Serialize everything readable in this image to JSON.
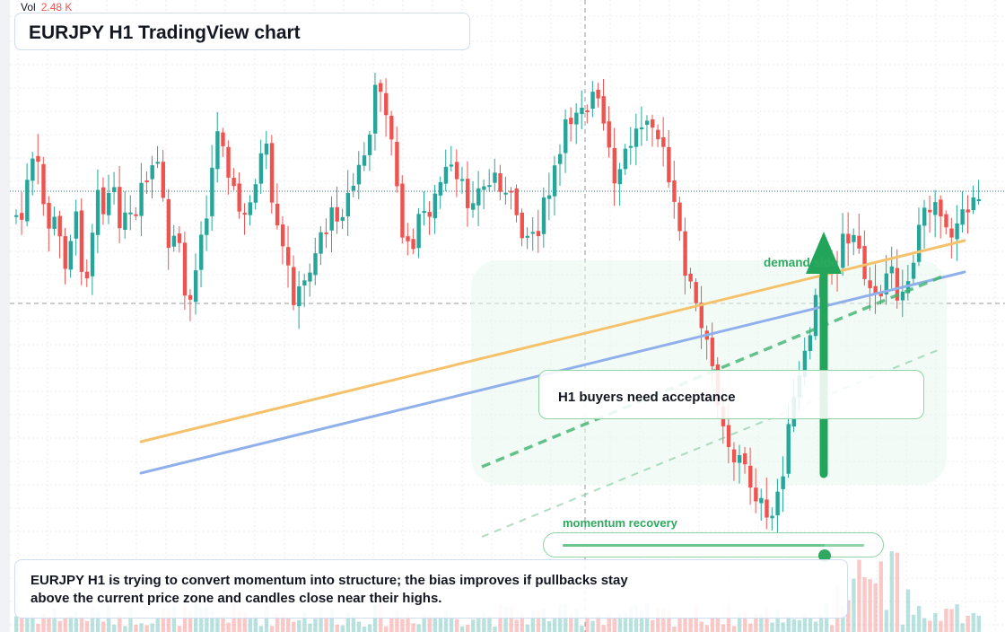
{
  "legend": {
    "label": "Vol",
    "value": "2.48 K"
  },
  "title": "EURJPY H1 TradingView chart",
  "annotations": {
    "demand_label": "demand side",
    "callout": "H1 buyers need acceptance",
    "momentum_label": "momentum recovery",
    "momentum_level": 0.87
  },
  "summary": "EURJPY H1 is trying to convert momentum into structure; the bias improves if pullbacks stay above the current price zone and candles close near their highs.",
  "colors": {
    "up": "#26a69a",
    "down": "#ef5350",
    "accent": "#22a55a",
    "trend_orange": "#f5c26b",
    "trend_blue": "#8fb0ea"
  },
  "chart_data": {
    "type": "candlestick",
    "title": "EURJPY H1 TradingView chart",
    "bars_visible": 178,
    "grid": true,
    "price_axis_visible": false,
    "time_axis_visible": false,
    "volume_pane": true,
    "overlays": [
      "ascending orange trendline",
      "ascending blue trendline",
      "dashed green channel",
      "green up arrow",
      "momentum gauge"
    ]
  }
}
